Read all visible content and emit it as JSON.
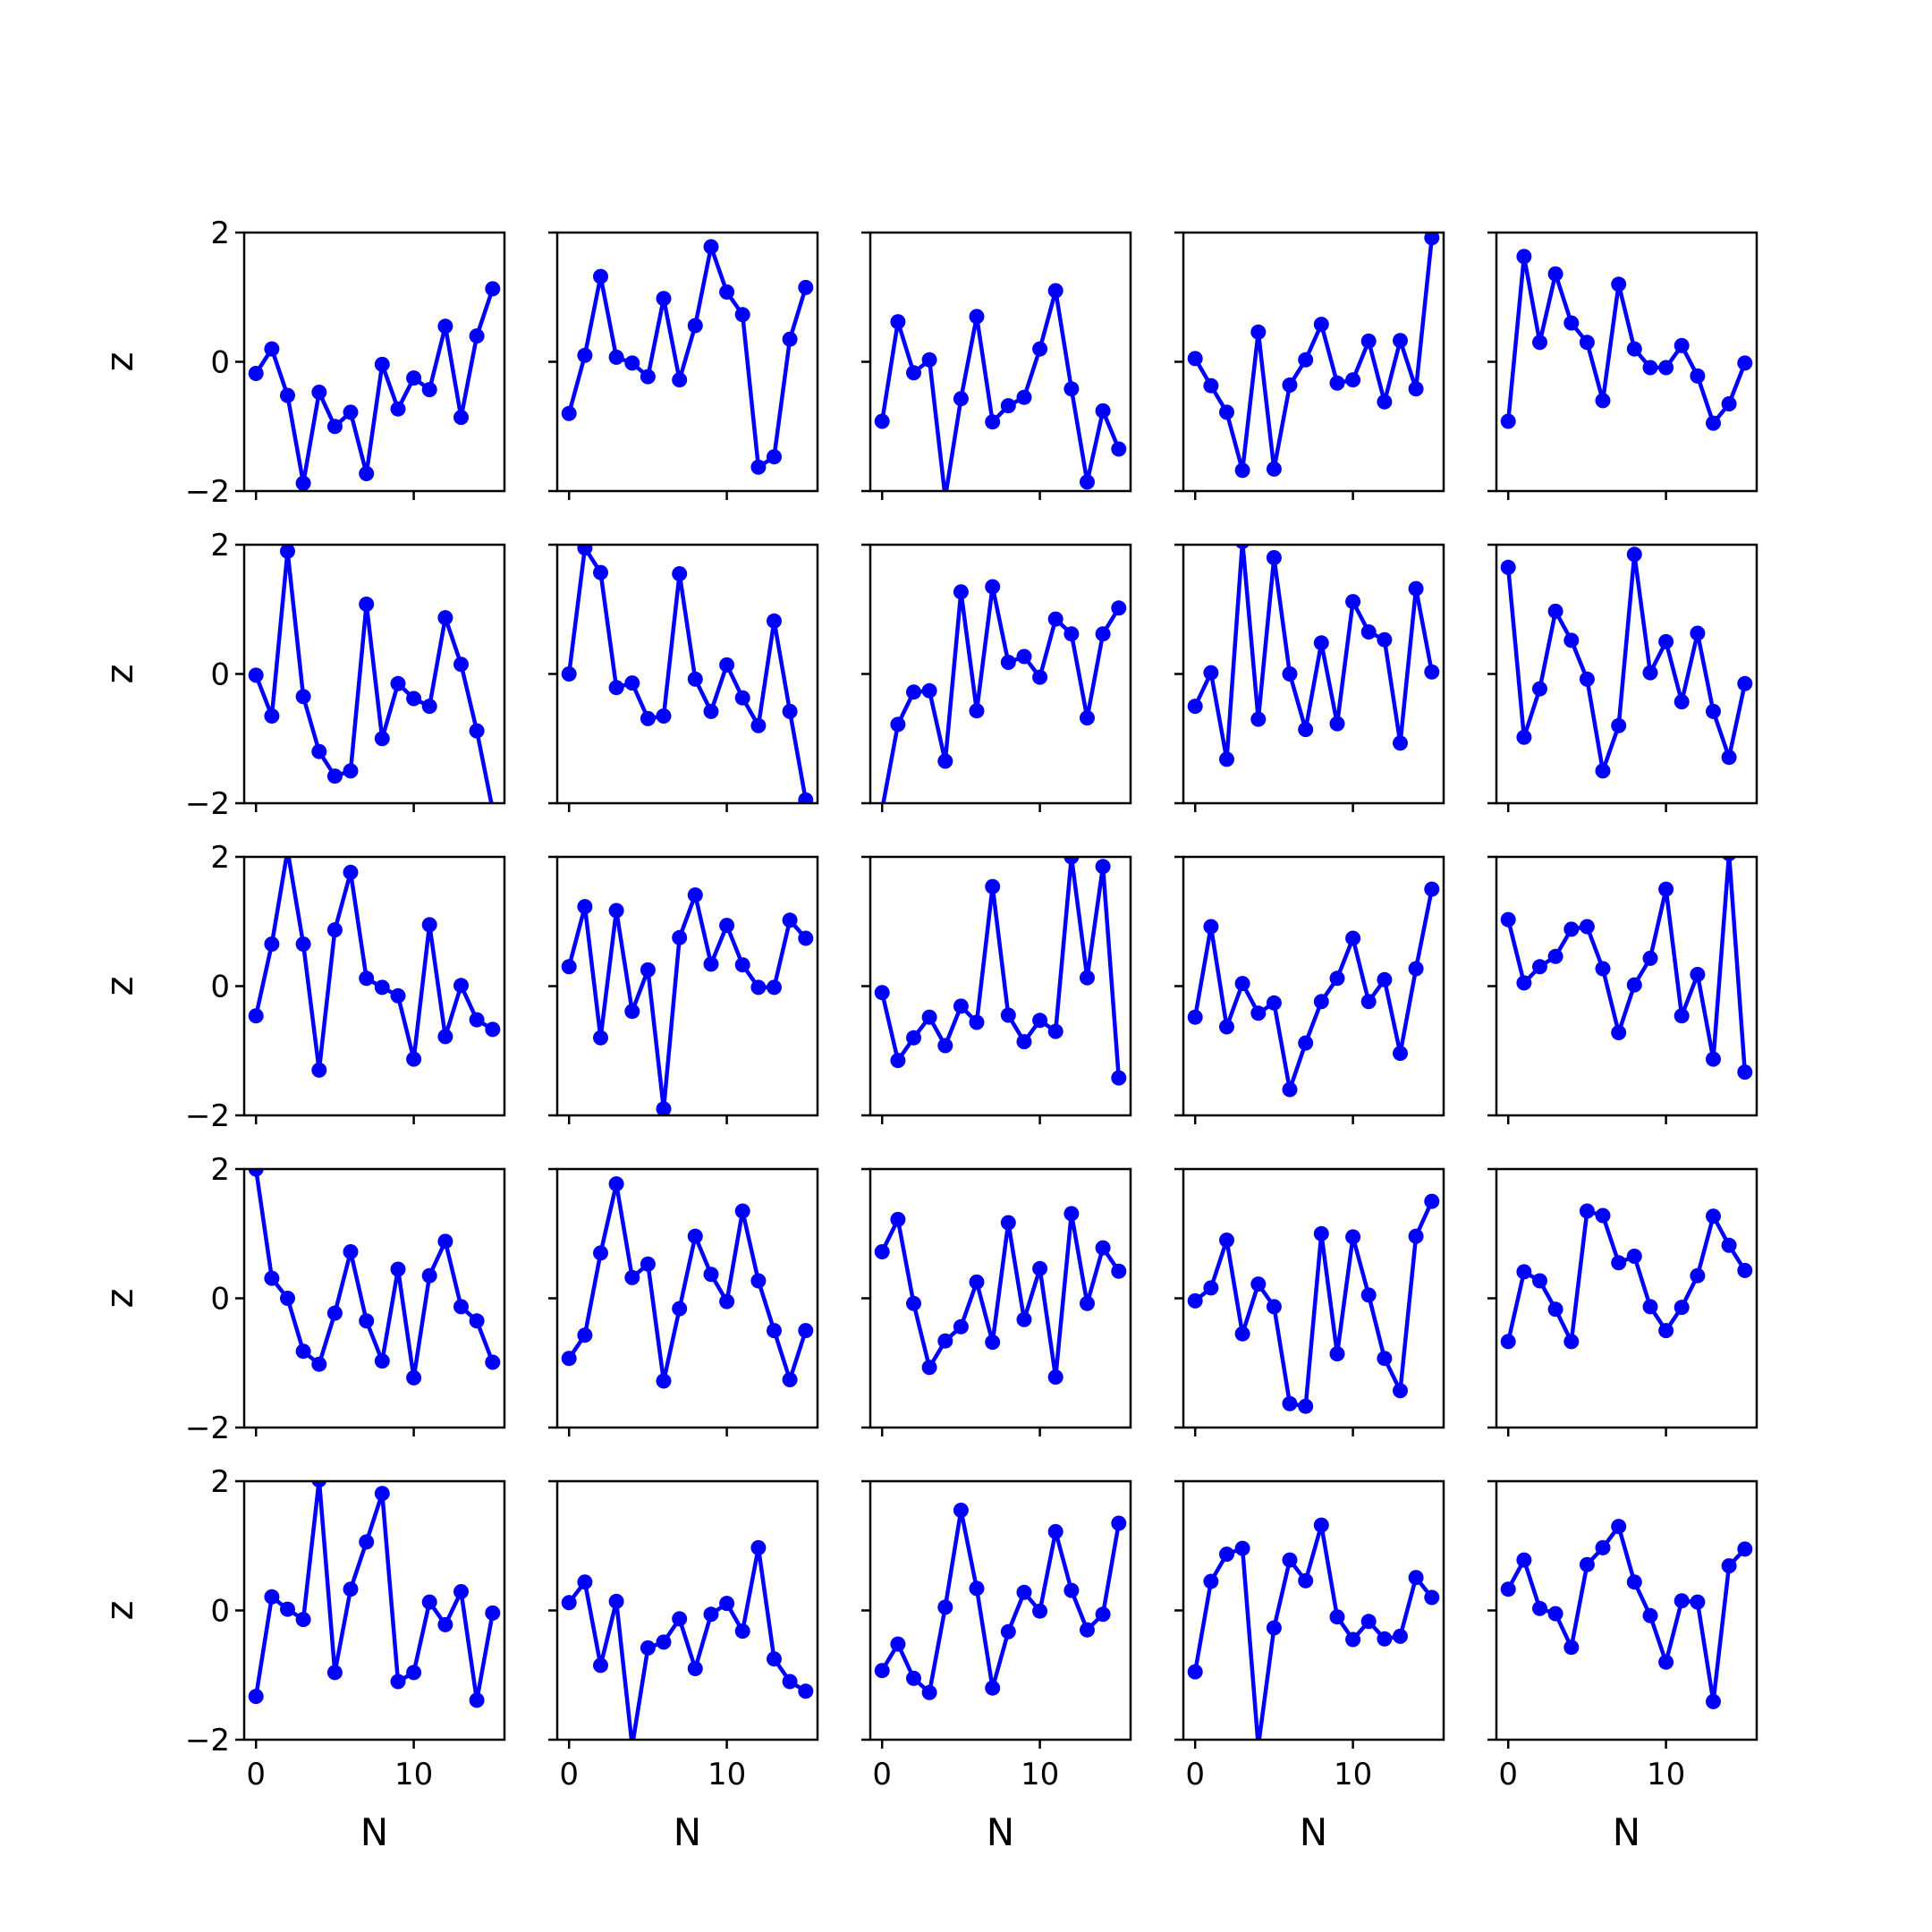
{
  "chart_data": {
    "type": "line",
    "layout": "5x5 grid of subplots with shared axes",
    "xlabel": "N",
    "ylabel": "z",
    "xlim": [
      -0.75,
      15.75
    ],
    "ylim": [
      -2,
      2
    ],
    "x_ticks": [
      0,
      10
    ],
    "x_tick_labels": [
      "0",
      "10"
    ],
    "y_ticks": [
      2,
      0,
      -2
    ],
    "y_tick_labels": [
      "2",
      "0",
      "−2"
    ],
    "x": [
      0,
      1,
      2,
      3,
      4,
      5,
      6,
      7,
      8,
      9,
      10,
      11,
      12,
      13,
      14,
      15
    ],
    "line_color": "#0000ff",
    "marker": "circle",
    "grid": false,
    "panels": [
      [
        [
          -0.18,
          0.2,
          -0.52,
          -1.88,
          -0.47,
          -1.0,
          -0.78,
          -1.73,
          -0.04,
          -0.73,
          -0.25,
          -0.43,
          0.55,
          -0.86,
          0.4,
          1.13
        ],
        [
          -0.8,
          0.1,
          1.32,
          0.07,
          -0.02,
          -0.23,
          0.98,
          -0.28,
          0.56,
          1.78,
          1.08,
          0.73,
          -1.63,
          -1.47,
          0.35,
          1.15
        ],
        [
          -0.92,
          0.62,
          -0.17,
          0.03,
          -2.1,
          -0.57,
          0.7,
          -0.93,
          -0.68,
          -0.55,
          0.2,
          1.1,
          -0.42,
          -1.86,
          -0.76,
          -1.35
        ],
        [
          0.05,
          -0.37,
          -0.78,
          -1.68,
          0.46,
          -1.66,
          -0.36,
          0.03,
          0.58,
          -0.33,
          -0.28,
          0.32,
          -0.62,
          0.33,
          -0.42,
          1.92
        ],
        [
          -0.92,
          1.63,
          0.3,
          1.36,
          0.6,
          0.3,
          -0.6,
          1.2,
          0.2,
          -0.09,
          -0.09,
          0.25,
          -0.22,
          -0.95,
          -0.65,
          -0.02
        ]
      ],
      [
        [
          -0.02,
          -0.65,
          1.9,
          -0.35,
          -1.2,
          -1.58,
          -1.5,
          1.08,
          -1.0,
          -0.15,
          -0.38,
          -0.5,
          0.87,
          0.15,
          -0.88,
          -2.1
        ],
        [
          0.0,
          1.95,
          1.57,
          -0.21,
          -0.14,
          -0.69,
          -0.65,
          1.55,
          -0.08,
          -0.58,
          0.14,
          -0.37,
          -0.8,
          0.82,
          -0.58,
          -1.95
        ],
        [
          -2.1,
          -0.78,
          -0.28,
          -0.26,
          -1.35,
          1.27,
          -0.57,
          1.35,
          0.18,
          0.27,
          -0.05,
          0.85,
          0.62,
          -0.68,
          0.62,
          1.02
        ],
        [
          -0.5,
          0.02,
          -1.32,
          2.05,
          -0.7,
          1.8,
          0.0,
          -0.86,
          0.48,
          -0.77,
          1.12,
          0.65,
          0.53,
          -1.07,
          1.32,
          0.03
        ],
        [
          1.65,
          -0.98,
          -0.23,
          0.97,
          0.52,
          -0.08,
          -1.5,
          -0.8,
          1.85,
          0.02,
          0.5,
          -0.43,
          0.63,
          -0.58,
          -1.29,
          -0.15
        ]
      ],
      [
        [
          -0.46,
          0.65,
          2.1,
          0.65,
          -1.3,
          0.87,
          1.76,
          0.12,
          -0.02,
          -0.15,
          -1.13,
          0.95,
          -0.78,
          0.01,
          -0.52,
          -0.67
        ],
        [
          0.3,
          1.23,
          -0.8,
          1.17,
          -0.39,
          0.25,
          -1.9,
          0.75,
          1.41,
          0.34,
          0.94,
          0.33,
          -0.02,
          -0.02,
          1.02,
          0.74
        ],
        [
          -0.1,
          -1.15,
          -0.8,
          -0.48,
          -0.92,
          -0.31,
          -0.56,
          1.54,
          -0.45,
          -0.86,
          -0.53,
          -0.7,
          2.0,
          0.13,
          1.85,
          -1.42
        ],
        [
          -0.48,
          0.92,
          -0.63,
          0.04,
          -0.42,
          -0.26,
          -1.6,
          -0.88,
          -0.24,
          0.12,
          0.74,
          -0.24,
          0.1,
          -1.04,
          0.27,
          1.5
        ],
        [
          1.03,
          0.05,
          0.3,
          0.46,
          0.88,
          0.92,
          0.27,
          -0.72,
          0.02,
          0.43,
          1.5,
          -0.46,
          0.18,
          -1.13,
          2.05,
          -1.33
        ]
      ],
      [
        [
          2.0,
          0.31,
          0.0,
          -0.82,
          -1.02,
          -0.23,
          0.72,
          -0.35,
          -0.97,
          0.45,
          -1.23,
          0.35,
          0.88,
          -0.13,
          -0.35,
          -0.99
        ],
        [
          -0.93,
          -0.57,
          0.7,
          1.77,
          0.32,
          0.53,
          -1.28,
          -0.16,
          0.96,
          0.37,
          -0.05,
          1.35,
          0.27,
          -0.5,
          -1.26,
          -0.5
        ],
        [
          0.72,
          1.22,
          -0.08,
          -1.07,
          -0.66,
          -0.44,
          0.25,
          -0.68,
          1.17,
          -0.33,
          0.46,
          -1.22,
          1.31,
          -0.08,
          0.78,
          0.42
        ],
        [
          -0.04,
          0.16,
          0.9,
          -0.55,
          0.22,
          -0.13,
          -1.63,
          -1.67,
          1.0,
          -0.86,
          0.95,
          0.05,
          -0.93,
          -1.43,
          0.96,
          1.5
        ],
        [
          -0.67,
          0.41,
          0.27,
          -0.17,
          -0.67,
          1.35,
          1.28,
          0.55,
          0.65,
          -0.13,
          -0.5,
          -0.14,
          0.35,
          1.27,
          0.82,
          0.43
        ]
      ],
      [
        [
          -1.33,
          0.21,
          0.02,
          -0.14,
          2.02,
          -0.96,
          0.33,
          1.06,
          1.81,
          -1.1,
          -0.96,
          0.13,
          -0.22,
          0.29,
          -1.39,
          -0.04
        ],
        [
          0.12,
          0.44,
          -0.85,
          0.14,
          -2.1,
          -0.58,
          -0.49,
          -0.13,
          -0.9,
          -0.06,
          0.11,
          -0.32,
          0.97,
          -0.75,
          -1.1,
          -1.25
        ],
        [
          -0.93,
          -0.52,
          -1.05,
          -1.27,
          0.05,
          1.55,
          0.34,
          -1.2,
          -0.33,
          0.28,
          -0.01,
          1.22,
          0.31,
          -0.3,
          -0.06,
          1.35
        ],
        [
          -0.95,
          0.45,
          0.87,
          0.96,
          -2.1,
          -0.27,
          0.78,
          0.46,
          1.32,
          -0.1,
          -0.45,
          -0.17,
          -0.44,
          -0.4,
          0.51,
          0.2
        ],
        [
          0.33,
          0.78,
          0.03,
          -0.05,
          -0.57,
          0.71,
          0.97,
          1.3,
          0.44,
          -0.08,
          -0.8,
          0.15,
          0.13,
          -1.41,
          0.69,
          0.95
        ]
      ]
    ]
  }
}
